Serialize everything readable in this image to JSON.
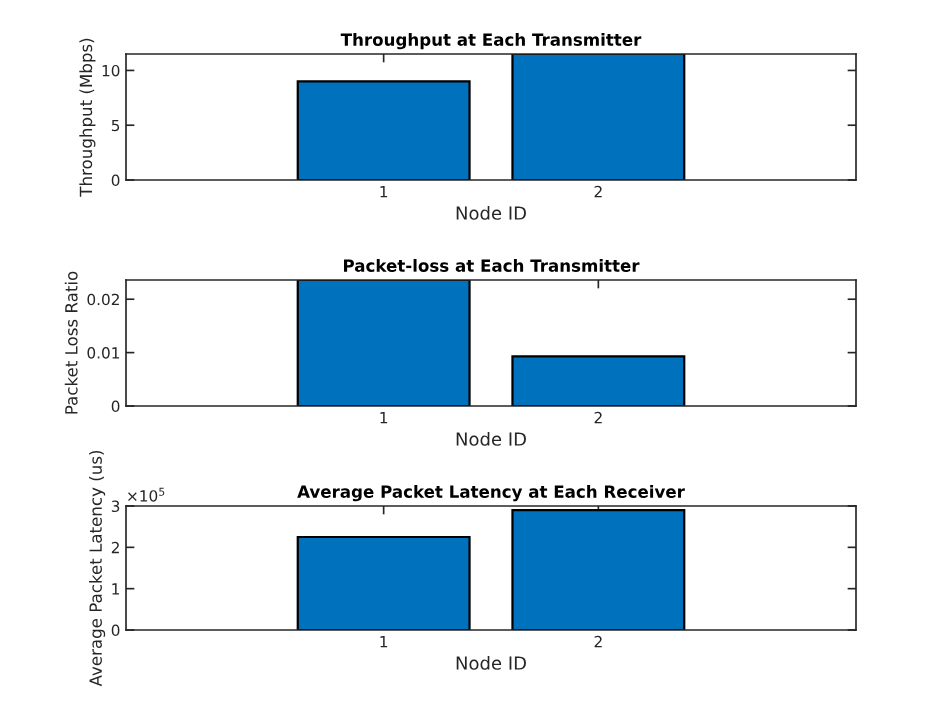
{
  "chart_data": [
    {
      "type": "bar",
      "title": "Throughput at Each Transmitter",
      "xlabel": "Node ID",
      "ylabel": "Throughput (Mbps)",
      "categories": [
        "1",
        "2"
      ],
      "values": [
        9.0,
        11.5
      ],
      "color": "#0072bd",
      "ylim": [
        0,
        11.5
      ],
      "yticks": [
        0,
        5,
        10
      ],
      "grid": false
    },
    {
      "type": "bar",
      "title": "Packet-loss at Each Transmitter",
      "xlabel": "Node ID",
      "ylabel": "Packet Loss Ratio",
      "categories": [
        "1",
        "2"
      ],
      "values": [
        0.0236,
        0.0093
      ],
      "color": "#0072bd",
      "ylim": [
        0,
        0.0236
      ],
      "yticks": [
        0,
        0.01,
        0.02
      ],
      "grid": false
    },
    {
      "type": "bar",
      "title": "Average Packet Latency at Each Receiver",
      "xlabel": "Node ID",
      "ylabel": "Average Packet Latency (us)",
      "categories": [
        "1",
        "2"
      ],
      "values": [
        2.25,
        2.9
      ],
      "color": "#0072bd",
      "ylim": [
        0,
        3
      ],
      "yticks": [
        0,
        1,
        2,
        3
      ],
      "annotations": [
        "×10$^{5}$"
      ],
      "grid": false
    }
  ]
}
